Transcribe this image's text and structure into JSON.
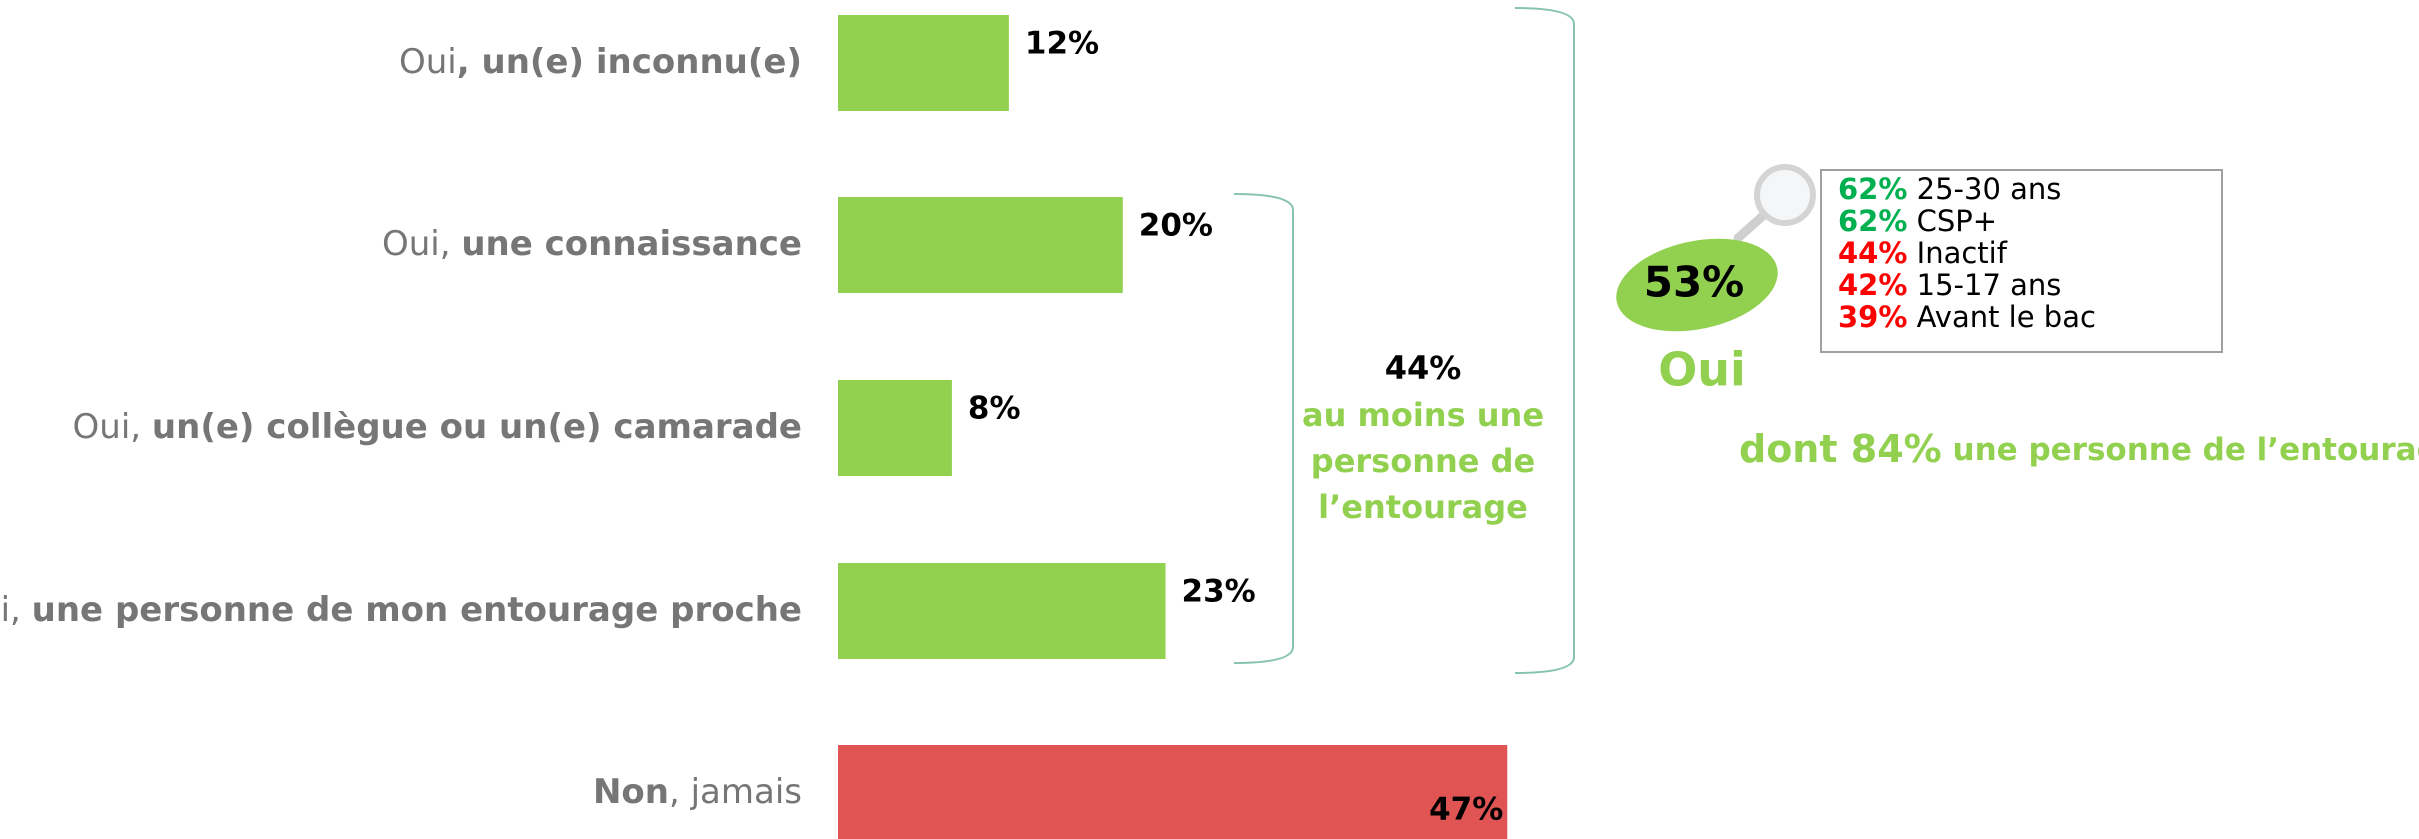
{
  "chart_data": {
    "type": "hbar",
    "categories": [
      [
        {
          "text": "Oui",
          "bold": false
        },
        {
          "text": ", un(e) inconnu(e)",
          "bold": true
        }
      ],
      [
        {
          "text": "Oui, ",
          "bold": false
        },
        {
          "text": "une connaissance",
          "bold": true
        }
      ],
      [
        {
          "text": "Oui, ",
          "bold": false
        },
        {
          "text": "un(e) collègue ou un(e) camarade",
          "bold": true
        }
      ],
      [
        {
          "text": "Oui, ",
          "bold": false
        },
        {
          "text": "une personne de mon entourage proche",
          "bold": true
        }
      ],
      [
        {
          "text": "Non",
          "bold": true
        },
        {
          "text": ", jamais",
          "bold": false
        }
      ]
    ],
    "values": [
      12,
      20,
      8,
      23,
      47
    ],
    "value_labels": [
      "12%",
      "20%",
      "8%",
      "23%",
      "47%"
    ],
    "colors": [
      "#92d050",
      "#92d050",
      "#92d050",
      "#92d050",
      "#e05454"
    ],
    "xlim": [
      0,
      100
    ],
    "bracket": {
      "value": 44,
      "value_label": "44%",
      "text": [
        "au moins une",
        "personne de",
        "l’entourage"
      ]
    },
    "summary": {
      "value": 53,
      "value_label": "53%",
      "label": "Oui",
      "sub_value": 84,
      "sub_value_label": "dont 84%",
      "sub_text": " une personne de l’entourage"
    },
    "breakdown": [
      {
        "value": 62,
        "value_label": "62%",
        "text": " 25-30 ans",
        "color": "#00b050"
      },
      {
        "value": 62,
        "value_label": "62%",
        "text": " CSP+",
        "color": "#00b050"
      },
      {
        "value": 44,
        "value_label": "44%",
        "text": " Inactif",
        "color": "#ff0000"
      },
      {
        "value": 42,
        "value_label": "42%",
        "text": " 15-17 ans",
        "color": "#ff0000"
      },
      {
        "value": 39,
        "value_label": "39%",
        "text": " Avant le bac",
        "color": "#ff0000"
      }
    ]
  }
}
